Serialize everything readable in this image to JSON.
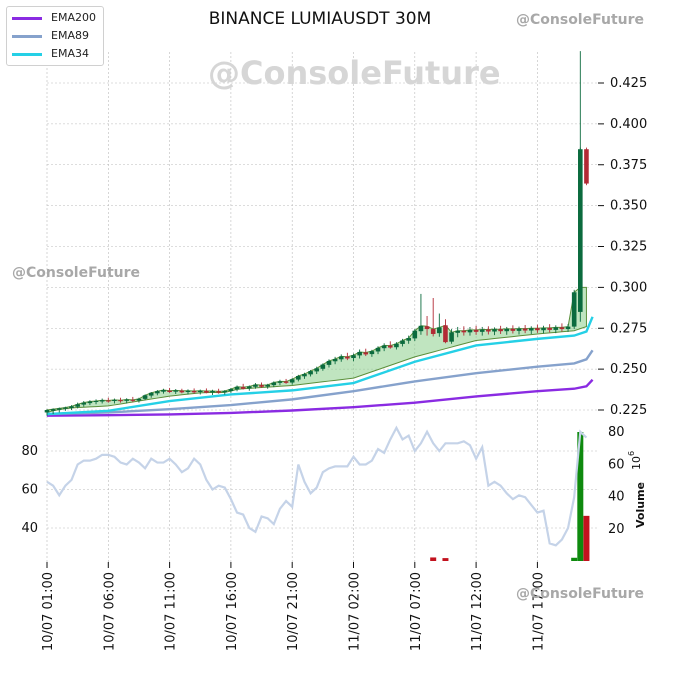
{
  "title": "BINANCE LUMIAUSDT 30M",
  "watermarks": {
    "center": "@ConsoleFuture",
    "top_right": "@ConsoleFuture",
    "left": "@ConsoleFuture",
    "bottom_right": "@ConsoleFuture"
  },
  "legend": [
    {
      "label": "EMA200",
      "color": "#8a2be2"
    },
    {
      "label": "EMA89",
      "color": "#86a2cc"
    },
    {
      "label": "EMA34",
      "color": "#25d0e6"
    }
  ],
  "colors": {
    "up": "#0b6b3e",
    "down": "#b22a35",
    "volume_up": "#0e8a0e",
    "volume_down": "#c2121e",
    "rsi_line": "#c5d3e8",
    "band_fill": "#8ccf8c",
    "grid": "#bbbbbb"
  },
  "chart_data": [
    {
      "type": "candlestick",
      "title": "BINANCE LUMIAUSDT 30M",
      "ylim": [
        0.22,
        0.445
      ],
      "y_ticks": [
        "0.225",
        "0.250",
        "0.275",
        "0.300",
        "0.325",
        "0.350",
        "0.375",
        "0.400",
        "0.425"
      ],
      "x_ticks": [
        "10/07 01:00",
        "10/07 06:00",
        "10/07 11:00",
        "10/07 16:00",
        "10/07 21:00",
        "11/07 02:00",
        "11/07 07:00",
        "11/07 12:00",
        "11/07 17:00"
      ],
      "grid": true,
      "legend_position": "top-left",
      "series": [
        {
          "name": "EMA200",
          "x": [
            0,
            10,
            20,
            30,
            40,
            50,
            60,
            70,
            80,
            86,
            88,
            89
          ],
          "y": [
            0.2215,
            0.2218,
            0.2223,
            0.2232,
            0.2247,
            0.2267,
            0.2295,
            0.2333,
            0.2365,
            0.238,
            0.2395,
            0.2435
          ]
        },
        {
          "name": "EMA89",
          "x": [
            0,
            10,
            20,
            30,
            40,
            50,
            60,
            70,
            80,
            86,
            88,
            89
          ],
          "y": [
            0.2225,
            0.2235,
            0.2255,
            0.228,
            0.2315,
            0.2365,
            0.2425,
            0.2475,
            0.2515,
            0.2535,
            0.256,
            0.2615
          ]
        },
        {
          "name": "EMA34",
          "x": [
            0,
            10,
            20,
            30,
            40,
            50,
            60,
            70,
            80,
            86,
            88,
            89
          ],
          "y": [
            0.2225,
            0.2245,
            0.2305,
            0.2345,
            0.237,
            0.2415,
            0.2545,
            0.2645,
            0.2685,
            0.2705,
            0.273,
            0.282
          ]
        }
      ],
      "candles": [
        {
          "i": 0,
          "o": 0.2235,
          "h": 0.2255,
          "l": 0.2215,
          "c": 0.225
        },
        {
          "i": 1,
          "o": 0.2245,
          "h": 0.226,
          "l": 0.2225,
          "c": 0.2255
        },
        {
          "i": 2,
          "o": 0.2252,
          "h": 0.2265,
          "l": 0.2235,
          "c": 0.226
        },
        {
          "i": 3,
          "o": 0.2258,
          "h": 0.227,
          "l": 0.2245,
          "c": 0.2265
        },
        {
          "i": 4,
          "o": 0.2262,
          "h": 0.228,
          "l": 0.225,
          "c": 0.2272
        },
        {
          "i": 5,
          "o": 0.227,
          "h": 0.2295,
          "l": 0.226,
          "c": 0.2285
        },
        {
          "i": 6,
          "o": 0.2283,
          "h": 0.2305,
          "l": 0.227,
          "c": 0.2295
        },
        {
          "i": 7,
          "o": 0.2292,
          "h": 0.231,
          "l": 0.228,
          "c": 0.2302
        },
        {
          "i": 8,
          "o": 0.23,
          "h": 0.2315,
          "l": 0.2285,
          "c": 0.2305
        },
        {
          "i": 9,
          "o": 0.2302,
          "h": 0.232,
          "l": 0.229,
          "c": 0.231
        },
        {
          "i": 10,
          "o": 0.2308,
          "h": 0.2325,
          "l": 0.2295,
          "c": 0.2302
        },
        {
          "i": 11,
          "o": 0.2305,
          "h": 0.232,
          "l": 0.229,
          "c": 0.2312
        },
        {
          "i": 12,
          "o": 0.231,
          "h": 0.2325,
          "l": 0.2295,
          "c": 0.2304
        },
        {
          "i": 13,
          "o": 0.2306,
          "h": 0.2322,
          "l": 0.229,
          "c": 0.2314
        },
        {
          "i": 14,
          "o": 0.2312,
          "h": 0.233,
          "l": 0.2298,
          "c": 0.2306
        },
        {
          "i": 15,
          "o": 0.2308,
          "h": 0.2325,
          "l": 0.2295,
          "c": 0.2318
        },
        {
          "i": 16,
          "o": 0.2318,
          "h": 0.2345,
          "l": 0.231,
          "c": 0.234
        },
        {
          "i": 17,
          "o": 0.2338,
          "h": 0.236,
          "l": 0.2325,
          "c": 0.2355
        },
        {
          "i": 18,
          "o": 0.2352,
          "h": 0.2372,
          "l": 0.234,
          "c": 0.2365
        },
        {
          "i": 19,
          "o": 0.2362,
          "h": 0.238,
          "l": 0.235,
          "c": 0.2372
        },
        {
          "i": 20,
          "o": 0.2368,
          "h": 0.2385,
          "l": 0.2355,
          "c": 0.236
        },
        {
          "i": 21,
          "o": 0.2362,
          "h": 0.2378,
          "l": 0.2348,
          "c": 0.237
        },
        {
          "i": 22,
          "o": 0.2368,
          "h": 0.238,
          "l": 0.2352,
          "c": 0.2358
        },
        {
          "i": 23,
          "o": 0.236,
          "h": 0.2376,
          "l": 0.2345,
          "c": 0.2368
        },
        {
          "i": 24,
          "o": 0.2366,
          "h": 0.2382,
          "l": 0.235,
          "c": 0.2358
        },
        {
          "i": 25,
          "o": 0.236,
          "h": 0.2375,
          "l": 0.2345,
          "c": 0.2368
        },
        {
          "i": 26,
          "o": 0.2366,
          "h": 0.2382,
          "l": 0.2352,
          "c": 0.2356
        },
        {
          "i": 27,
          "o": 0.2358,
          "h": 0.2374,
          "l": 0.2342,
          "c": 0.2366
        },
        {
          "i": 28,
          "o": 0.2364,
          "h": 0.238,
          "l": 0.235,
          "c": 0.2356
        },
        {
          "i": 29,
          "o": 0.2358,
          "h": 0.2372,
          "l": 0.2344,
          "c": 0.2366
        },
        {
          "i": 30,
          "o": 0.2366,
          "h": 0.2385,
          "l": 0.2355,
          "c": 0.2378
        },
        {
          "i": 31,
          "o": 0.2376,
          "h": 0.24,
          "l": 0.2365,
          "c": 0.2392
        },
        {
          "i": 32,
          "o": 0.239,
          "h": 0.241,
          "l": 0.2375,
          "c": 0.238
        },
        {
          "i": 33,
          "o": 0.2382,
          "h": 0.24,
          "l": 0.2368,
          "c": 0.2394
        },
        {
          "i": 34,
          "o": 0.2392,
          "h": 0.2415,
          "l": 0.238,
          "c": 0.2405
        },
        {
          "i": 35,
          "o": 0.2402,
          "h": 0.2418,
          "l": 0.2385,
          "c": 0.2392
        },
        {
          "i": 36,
          "o": 0.2394,
          "h": 0.241,
          "l": 0.238,
          "c": 0.2404
        },
        {
          "i": 37,
          "o": 0.2402,
          "h": 0.2425,
          "l": 0.239,
          "c": 0.2418
        },
        {
          "i": 38,
          "o": 0.2416,
          "h": 0.2435,
          "l": 0.2402,
          "c": 0.2425
        },
        {
          "i": 39,
          "o": 0.2424,
          "h": 0.244,
          "l": 0.241,
          "c": 0.2416
        },
        {
          "i": 40,
          "o": 0.2418,
          "h": 0.2445,
          "l": 0.2405,
          "c": 0.2438
        },
        {
          "i": 41,
          "o": 0.2436,
          "h": 0.2465,
          "l": 0.2425,
          "c": 0.2458
        },
        {
          "i": 42,
          "o": 0.2456,
          "h": 0.2478,
          "l": 0.244,
          "c": 0.247
        },
        {
          "i": 43,
          "o": 0.2468,
          "h": 0.2495,
          "l": 0.2455,
          "c": 0.2488
        },
        {
          "i": 44,
          "o": 0.2486,
          "h": 0.2515,
          "l": 0.247,
          "c": 0.2505
        },
        {
          "i": 45,
          "o": 0.2502,
          "h": 0.2535,
          "l": 0.249,
          "c": 0.2528
        },
        {
          "i": 46,
          "o": 0.2526,
          "h": 0.256,
          "l": 0.251,
          "c": 0.255
        },
        {
          "i": 47,
          "o": 0.2548,
          "h": 0.2575,
          "l": 0.253,
          "c": 0.2562
        },
        {
          "i": 48,
          "o": 0.256,
          "h": 0.259,
          "l": 0.2545,
          "c": 0.2578
        },
        {
          "i": 49,
          "o": 0.2576,
          "h": 0.26,
          "l": 0.2555,
          "c": 0.2565
        },
        {
          "i": 50,
          "o": 0.2568,
          "h": 0.2595,
          "l": 0.2548,
          "c": 0.2585
        },
        {
          "i": 51,
          "o": 0.2584,
          "h": 0.262,
          "l": 0.2565,
          "c": 0.2605
        },
        {
          "i": 52,
          "o": 0.2602,
          "h": 0.2625,
          "l": 0.258,
          "c": 0.259
        },
        {
          "i": 53,
          "o": 0.2592,
          "h": 0.2618,
          "l": 0.2575,
          "c": 0.261
        },
        {
          "i": 54,
          "o": 0.2608,
          "h": 0.264,
          "l": 0.2592,
          "c": 0.263
        },
        {
          "i": 55,
          "o": 0.2628,
          "h": 0.2658,
          "l": 0.261,
          "c": 0.2645
        },
        {
          "i": 56,
          "o": 0.2644,
          "h": 0.267,
          "l": 0.2625,
          "c": 0.2632
        },
        {
          "i": 57,
          "o": 0.2634,
          "h": 0.2665,
          "l": 0.262,
          "c": 0.2655
        },
        {
          "i": 58,
          "o": 0.2654,
          "h": 0.2685,
          "l": 0.2638,
          "c": 0.2675
        },
        {
          "i": 59,
          "o": 0.2674,
          "h": 0.2705,
          "l": 0.2655,
          "c": 0.269
        },
        {
          "i": 60,
          "o": 0.2688,
          "h": 0.2745,
          "l": 0.2672,
          "c": 0.2735
        },
        {
          "i": 61,
          "o": 0.2732,
          "h": 0.296,
          "l": 0.271,
          "c": 0.2765
        },
        {
          "i": 62,
          "o": 0.2762,
          "h": 0.2825,
          "l": 0.2705,
          "c": 0.2745
        },
        {
          "i": 63,
          "o": 0.2745,
          "h": 0.2935,
          "l": 0.27,
          "c": 0.2715
        },
        {
          "i": 64,
          "o": 0.272,
          "h": 0.284,
          "l": 0.2698,
          "c": 0.2755
        },
        {
          "i": 65,
          "o": 0.2768,
          "h": 0.2805,
          "l": 0.2658,
          "c": 0.2665
        },
        {
          "i": 66,
          "o": 0.2668,
          "h": 0.2745,
          "l": 0.2655,
          "c": 0.2725
        },
        {
          "i": 67,
          "o": 0.2722,
          "h": 0.2758,
          "l": 0.2695,
          "c": 0.2735
        },
        {
          "i": 68,
          "o": 0.2735,
          "h": 0.2762,
          "l": 0.2705,
          "c": 0.2725
        },
        {
          "i": 69,
          "o": 0.2725,
          "h": 0.2758,
          "l": 0.2705,
          "c": 0.274
        },
        {
          "i": 70,
          "o": 0.274,
          "h": 0.2765,
          "l": 0.271,
          "c": 0.2728
        },
        {
          "i": 71,
          "o": 0.2728,
          "h": 0.2758,
          "l": 0.2705,
          "c": 0.2742
        },
        {
          "i": 72,
          "o": 0.2742,
          "h": 0.2762,
          "l": 0.2712,
          "c": 0.273
        },
        {
          "i": 73,
          "o": 0.273,
          "h": 0.2755,
          "l": 0.2708,
          "c": 0.2744
        },
        {
          "i": 74,
          "o": 0.2744,
          "h": 0.2765,
          "l": 0.2715,
          "c": 0.2732
        },
        {
          "i": 75,
          "o": 0.2732,
          "h": 0.2758,
          "l": 0.271,
          "c": 0.2746
        },
        {
          "i": 76,
          "o": 0.2746,
          "h": 0.2768,
          "l": 0.2718,
          "c": 0.2734
        },
        {
          "i": 77,
          "o": 0.2734,
          "h": 0.276,
          "l": 0.2712,
          "c": 0.2748
        },
        {
          "i": 78,
          "o": 0.2748,
          "h": 0.277,
          "l": 0.272,
          "c": 0.2736
        },
        {
          "i": 79,
          "o": 0.2736,
          "h": 0.2762,
          "l": 0.2715,
          "c": 0.275
        },
        {
          "i": 80,
          "o": 0.275,
          "h": 0.2772,
          "l": 0.2722,
          "c": 0.2738
        },
        {
          "i": 81,
          "o": 0.2738,
          "h": 0.2765,
          "l": 0.2718,
          "c": 0.2752
        },
        {
          "i": 82,
          "o": 0.2752,
          "h": 0.2775,
          "l": 0.2725,
          "c": 0.274
        },
        {
          "i": 83,
          "o": 0.274,
          "h": 0.2768,
          "l": 0.272,
          "c": 0.2755
        },
        {
          "i": 84,
          "o": 0.2755,
          "h": 0.278,
          "l": 0.273,
          "c": 0.2745
        },
        {
          "i": 85,
          "o": 0.2745,
          "h": 0.2775,
          "l": 0.2728,
          "c": 0.276
        },
        {
          "i": 86,
          "o": 0.276,
          "h": 0.2985,
          "l": 0.2745,
          "c": 0.297
        },
        {
          "i": 87,
          "o": 0.285,
          "h": 0.3855,
          "l": 0.279,
          "c": 0.3845
        },
        {
          "i": 88,
          "o": 0.3845,
          "h": 0.3855,
          "l": 0.3625,
          "c": 0.3635
        }
      ],
      "big_spike_high": 0.4445
    },
    {
      "type": "line",
      "ylim": [
        22,
        95
      ],
      "y_ticks": [
        "40",
        "60",
        "80"
      ],
      "series": [
        {
          "name": "",
          "x": [
            0,
            1,
            2,
            3,
            4,
            5,
            6,
            7,
            8,
            9,
            10,
            11,
            12,
            13,
            14,
            15,
            16,
            17,
            18,
            19,
            20,
            21,
            22,
            23,
            24,
            25,
            26,
            27,
            28,
            29,
            30,
            31,
            32,
            33,
            34,
            35,
            36,
            37,
            38,
            39,
            40,
            41,
            42,
            43,
            44,
            45,
            46,
            47,
            48,
            49,
            50,
            51,
            52,
            53,
            54,
            55,
            56,
            57,
            58,
            59,
            60,
            61,
            62,
            63,
            64,
            65,
            66,
            67,
            68,
            69,
            70,
            71,
            72,
            73,
            74,
            75,
            76,
            77,
            78,
            79,
            80,
            81,
            82,
            83,
            84,
            85,
            86,
            87,
            88
          ],
          "y": [
            64,
            62,
            57,
            62,
            65,
            73,
            75,
            75,
            76,
            78,
            78,
            77,
            74,
            73,
            76,
            74,
            71,
            76,
            74,
            74,
            76,
            73,
            69,
            71,
            76,
            73,
            65,
            60,
            62,
            61,
            55,
            48,
            47,
            40,
            38,
            46,
            45,
            42,
            50,
            54,
            51,
            73,
            64,
            58,
            61,
            69,
            71,
            72,
            72,
            72,
            77,
            73,
            73,
            75,
            81,
            79,
            86,
            92,
            86,
            88,
            80,
            84,
            90,
            84,
            80,
            84,
            84,
            84,
            85,
            83,
            76,
            82,
            62,
            64,
            62,
            58,
            55,
            57,
            56,
            52,
            48,
            49,
            32,
            31,
            34,
            40,
            56,
            90,
            87
          ]
        }
      ]
    },
    {
      "type": "bar",
      "ylabel": "Volume",
      "unit": "10^6",
      "ylim": [
        0,
        82
      ],
      "y_ticks": [
        "20",
        "40",
        "60",
        "80"
      ],
      "bars": [
        {
          "i": 63,
          "v": 2.2,
          "dir": "down"
        },
        {
          "i": 65,
          "v": 1.8,
          "dir": "down"
        },
        {
          "i": 86,
          "v": 2.0,
          "dir": "up"
        },
        {
          "i": 87,
          "v": 80,
          "dir": "up"
        },
        {
          "i": 88,
          "v": 28,
          "dir": "down"
        }
      ]
    }
  ]
}
